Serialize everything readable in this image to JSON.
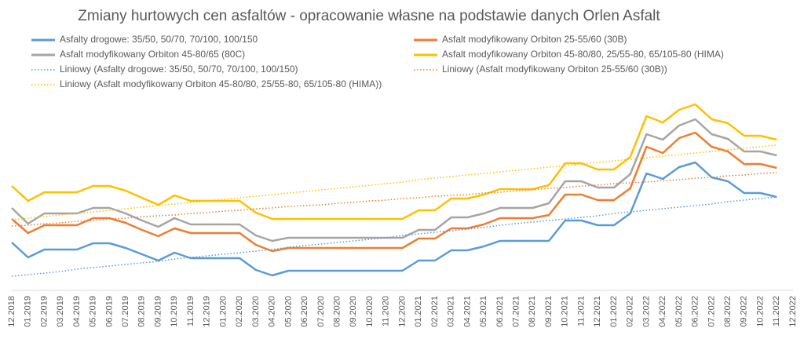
{
  "chart_data": {
    "type": "line",
    "title": "Zmiany hurtowych cen asfaltów - opracowanie własne na podstawie danych Orlen Asfalt",
    "categories": [
      "12.2018",
      "01.2019",
      "02.2019",
      "03.2019",
      "04.2019",
      "05.2019",
      "06.2019",
      "07.2019",
      "08.2019",
      "09.2019",
      "10.2019",
      "11.2019",
      "12.2019",
      "01.2020",
      "02.2020",
      "03.2020",
      "04.2020",
      "05.2020",
      "06.2020",
      "07.2020",
      "08.2020",
      "09.2020",
      "10.2020",
      "11.2020",
      "12.2020",
      "01.2021",
      "02.2021",
      "03.2021",
      "04.2021",
      "05.2021",
      "06.2021",
      "07.2021",
      "08.2021",
      "09.2021",
      "10.2021",
      "11.2021",
      "12.2021",
      "01.2022",
      "02.2022",
      "03.2022",
      "04.2022",
      "05.2022",
      "06.2022",
      "07.2022",
      "08.2022",
      "09.2022",
      "10.2022",
      "11.2022",
      "12.2022"
    ],
    "ylim": [
      0,
      270
    ],
    "series": [
      {
        "name": "Asfalty drogowe: 35/50, 50/70, 70/100, 100/150",
        "color": "#5b9bd5",
        "style": "solid",
        "values": [
          61,
          42,
          52,
          52,
          52,
          60,
          60,
          54,
          46,
          38,
          48,
          41,
          41,
          41,
          41,
          26,
          19,
          25,
          25,
          25,
          25,
          25,
          25,
          25,
          25,
          38,
          38,
          51,
          51,
          56,
          63,
          63,
          63,
          63,
          89,
          89,
          83,
          83,
          98,
          149,
          142,
          157,
          163,
          144,
          139,
          124,
          124,
          119,
          null
        ]
      },
      {
        "name": "Asfalt modyfikowany Orbiton 25-55/60 (30B)",
        "color": "#ed7d31",
        "style": "solid",
        "values": [
          91,
          73,
          83,
          83,
          83,
          92,
          92,
          86,
          77,
          69,
          79,
          73,
          73,
          73,
          73,
          58,
          50,
          54,
          54,
          54,
          54,
          54,
          54,
          54,
          54,
          66,
          66,
          79,
          79,
          84,
          92,
          92,
          92,
          96,
          122,
          122,
          115,
          115,
          130,
          183,
          175,
          194,
          201,
          183,
          177,
          161,
          161,
          156,
          null
        ]
      },
      {
        "name": "Asfalt modyfikowany Orbiton 45-80/65 (80C)",
        "color": "#a5a5a5",
        "style": "solid",
        "values": [
          105,
          85,
          98,
          98,
          98,
          105,
          105,
          98,
          89,
          81,
          92,
          84,
          84,
          84,
          84,
          70,
          63,
          67,
          67,
          67,
          67,
          67,
          67,
          67,
          67,
          77,
          77,
          93,
          93,
          98,
          105,
          105,
          105,
          111,
          139,
          139,
          131,
          131,
          148,
          199,
          192,
          210,
          218,
          199,
          193,
          177,
          177,
          172,
          null
        ]
      },
      {
        "name": "Asfalt modyfikowany Orbiton 45-80/80, 25/55-80, 65/105-80 (HIMA)",
        "color": "#ffc000",
        "style": "solid",
        "values": [
          133,
          114,
          125,
          125,
          125,
          133,
          133,
          127,
          118,
          109,
          121,
          114,
          114,
          114,
          114,
          99,
          91,
          91,
          91,
          91,
          91,
          91,
          91,
          91,
          91,
          102,
          102,
          117,
          117,
          122,
          129,
          129,
          129,
          134,
          162,
          162,
          154,
          154,
          170,
          222,
          214,
          230,
          237,
          218,
          213,
          197,
          197,
          192,
          null
        ]
      },
      {
        "name": "Liniowy (Asfalty drogowe: 35/50, 50/70, 70/100, 100/150)",
        "color": "#5b9bd5",
        "style": "dotted",
        "values": [
          18,
          20,
          22,
          24,
          27,
          29,
          31,
          33,
          35,
          37,
          40,
          42,
          44,
          46,
          48,
          50,
          52,
          55,
          57,
          59,
          61,
          63,
          65,
          67,
          70,
          72,
          74,
          76,
          78,
          80,
          83,
          85,
          87,
          89,
          91,
          93,
          95,
          98,
          100,
          102,
          104,
          106,
          108,
          110,
          113,
          115,
          117,
          119,
          null
        ]
      },
      {
        "name": "Liniowy (Asfalt modyfikowany Orbiton 25-55/60 (30B))",
        "color": "#ed7d31",
        "style": "dotted",
        "values": [
          82,
          83,
          85,
          86,
          88,
          89,
          91,
          92,
          94,
          95,
          96,
          98,
          99,
          101,
          102,
          104,
          105,
          107,
          108,
          109,
          111,
          112,
          114,
          115,
          117,
          118,
          120,
          121,
          122,
          124,
          125,
          127,
          128,
          130,
          131,
          133,
          134,
          136,
          137,
          138,
          140,
          141,
          143,
          144,
          146,
          147,
          149,
          150,
          null
        ]
      },
      {
        "name": "Liniowy (Asfalt modyfikowany Orbiton 45-80/80, 25/55-80, 65/105-80 (HIMA))",
        "color": "#ffc000",
        "style": "dotted",
        "values": [
          90,
          92,
          94,
          96,
          98,
          100,
          102,
          104,
          106,
          108,
          110,
          112,
          114,
          116,
          118,
          120,
          122,
          124,
          126,
          128,
          130,
          132,
          134,
          136,
          138,
          141,
          143,
          145,
          147,
          149,
          151,
          153,
          155,
          157,
          159,
          161,
          163,
          165,
          167,
          169,
          171,
          173,
          175,
          177,
          179,
          181,
          183,
          185,
          null
        ]
      }
    ]
  }
}
